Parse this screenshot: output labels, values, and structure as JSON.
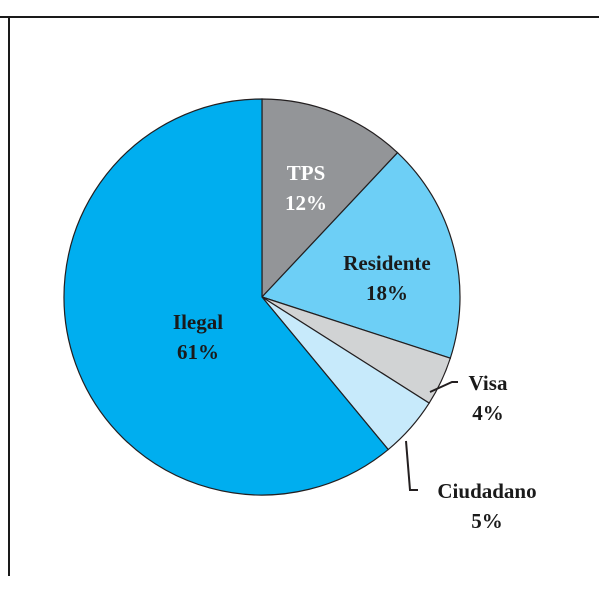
{
  "chart_data": {
    "type": "pie",
    "title": "",
    "slices": [
      {
        "label": "TPS",
        "value": 12,
        "value_label": "12%",
        "color": "#939598",
        "text_color": "#ffffff"
      },
      {
        "label": "Residente",
        "value": 18,
        "value_label": "18%",
        "color": "#6dcff6",
        "text_color": "#1a1a1a"
      },
      {
        "label": "Visa",
        "value": 4,
        "value_label": "4%",
        "color": "#d1d3d4",
        "text_color": "#1a1a1a"
      },
      {
        "label": "Ciudadano",
        "value": 5,
        "value_label": "5%",
        "color": "#c7eafb",
        "text_color": "#1a1a1a"
      },
      {
        "label": "Ilegal",
        "value": 61,
        "value_label": "61%",
        "color": "#00aeef",
        "text_color": "#1a1a1a"
      }
    ]
  }
}
